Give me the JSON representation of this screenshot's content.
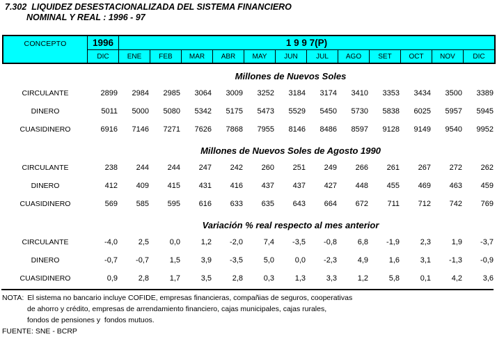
{
  "title": {
    "number": "7.302",
    "line1": "LIQUIDEZ DESESTACIONALIZADA DEL SISTEMA FINANCIERO",
    "line2": "NOMINAL Y REAL : 1996 - 97"
  },
  "colors": {
    "header_bg": "#00FFFF",
    "border": "#000000"
  },
  "header": {
    "concepto": "CONCEPTO",
    "year_1996": "1996",
    "year_1997": "1 9 9 7(P)",
    "columns": [
      "DIC",
      "ENE",
      "FEB",
      "MAR",
      "ABR",
      "MAY",
      "JUN",
      "JUL",
      "AGO",
      "SET",
      "OCT",
      "NOV",
      "DIC"
    ]
  },
  "sections": [
    {
      "title": "Millones de Nuevos Soles",
      "rows": [
        {
          "label": "CIRCULANTE",
          "values": [
            "2899",
            "2984",
            "2985",
            "3064",
            "3009",
            "3252",
            "3184",
            "3174",
            "3410",
            "3353",
            "3434",
            "3500",
            "3389"
          ]
        },
        {
          "label": "DINERO",
          "values": [
            "5011",
            "5000",
            "5080",
            "5342",
            "5175",
            "5473",
            "5529",
            "5450",
            "5730",
            "5838",
            "6025",
            "5957",
            "5945"
          ]
        },
        {
          "label": "CUASIDINERO",
          "values": [
            "6916",
            "7146",
            "7271",
            "7626",
            "7868",
            "7955",
            "8146",
            "8486",
            "8597",
            "9128",
            "9149",
            "9540",
            "9952"
          ]
        }
      ]
    },
    {
      "title": "Millones de Nuevos Soles de Agosto 1990",
      "rows": [
        {
          "label": "CIRCULANTE",
          "values": [
            "238",
            "244",
            "244",
            "247",
            "242",
            "260",
            "251",
            "249",
            "266",
            "261",
            "267",
            "272",
            "262"
          ]
        },
        {
          "label": "DINERO",
          "values": [
            "412",
            "409",
            "415",
            "431",
            "416",
            "437",
            "437",
            "427",
            "448",
            "455",
            "469",
            "463",
            "459"
          ]
        },
        {
          "label": "CUASIDINERO",
          "values": [
            "569",
            "585",
            "595",
            "616",
            "633",
            "635",
            "643",
            "664",
            "672",
            "711",
            "712",
            "742",
            "769"
          ]
        }
      ]
    },
    {
      "title": "Variación % real respecto al mes anterior",
      "rows": [
        {
          "label": "CIRCULANTE",
          "values": [
            "-4,0",
            "2,5",
            "0,0",
            "1,2",
            "-2,0",
            "7,4",
            "-3,5",
            "-0,8",
            "6,8",
            "-1,9",
            "2,3",
            "1,9",
            "-3,7"
          ]
        },
        {
          "label": "DINERO",
          "values": [
            "-0,7",
            "-0,7",
            "1,5",
            "3,9",
            "-3,5",
            "5,0",
            "0,0",
            "-2,3",
            "4,9",
            "1,6",
            "3,1",
            "-1,3",
            "-0,9"
          ]
        },
        {
          "label": "CUASIDINERO",
          "values": [
            "0,9",
            "2,8",
            "1,7",
            "3,5",
            "2,8",
            "0,3",
            "1,3",
            "3,3",
            "1,2",
            "5,8",
            "0,1",
            "4,2",
            "3,6"
          ]
        }
      ]
    }
  ],
  "footer": {
    "nota_label": "NOTA:",
    "nota_lines": [
      "El sistema no bancario incluye COFIDE, empresas financieras, compañias de seguros, cooperativas",
      "de ahorro y crédito, empresas de arrendamiento financiero, cajas municipales, cajas rurales,",
      "fondos de pensiones y  fondos mutuos."
    ],
    "fuente": "FUENTE: SNE - BCRP"
  }
}
